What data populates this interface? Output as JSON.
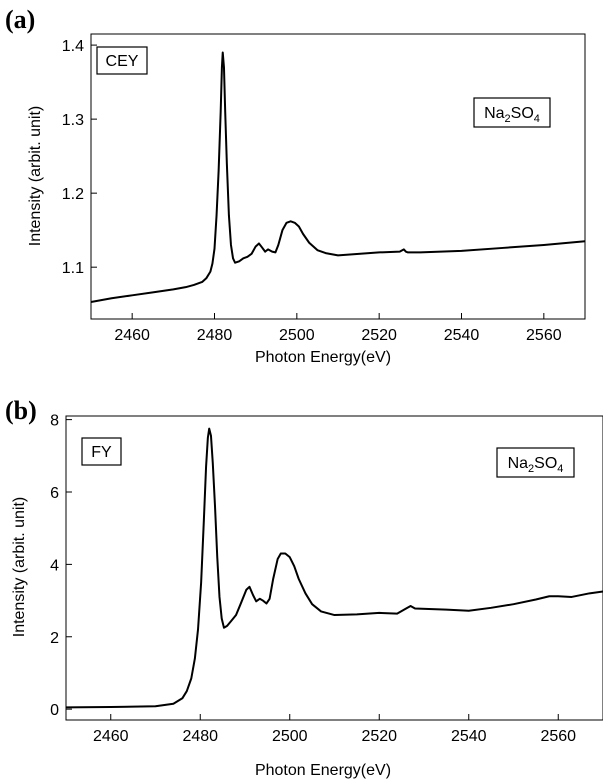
{
  "chart_data": [
    {
      "type": "line",
      "panel_label": "(a)",
      "method_label": "CEY",
      "sample_label": {
        "main": "Na",
        "sub1": "2",
        "mid": "SO",
        "sub2": "4"
      },
      "xlabel": "Photon Energy(eV)",
      "ylabel": "Intensity (arbit. unit)",
      "xlim": [
        2450,
        2570
      ],
      "ylim": [
        1.03,
        1.415
      ],
      "xticks": [
        2460,
        2480,
        2500,
        2520,
        2540,
        2560
      ],
      "yticks": [
        1.1,
        1.2,
        1.3,
        1.4
      ],
      "series": [
        {
          "x": [
            2450,
            2455,
            2460,
            2465,
            2470,
            2473,
            2475,
            2477,
            2478,
            2479,
            2479.5,
            2480,
            2480.5,
            2481,
            2481.5,
            2481.8,
            2482,
            2482.3,
            2482.6,
            2483,
            2483.5,
            2484,
            2484.5,
            2485,
            2486,
            2487,
            2488,
            2489,
            2490,
            2490.8,
            2491.5,
            2492.3,
            2493,
            2494,
            2494.8,
            2495.5,
            2496.5,
            2497.5,
            2498.5,
            2499.5,
            2500.5,
            2501.5,
            2503,
            2505,
            2507,
            2510,
            2515,
            2520,
            2525,
            2526,
            2526.5,
            2527,
            2530,
            2540,
            2550,
            2560,
            2570
          ],
          "y": [
            1.053,
            1.058,
            1.062,
            1.066,
            1.07,
            1.073,
            1.076,
            1.08,
            1.085,
            1.094,
            1.105,
            1.125,
            1.17,
            1.23,
            1.31,
            1.37,
            1.39,
            1.37,
            1.31,
            1.24,
            1.17,
            1.13,
            1.112,
            1.106,
            1.108,
            1.112,
            1.114,
            1.118,
            1.128,
            1.132,
            1.127,
            1.121,
            1.124,
            1.121,
            1.12,
            1.13,
            1.15,
            1.16,
            1.162,
            1.16,
            1.155,
            1.145,
            1.133,
            1.123,
            1.119,
            1.116,
            1.118,
            1.12,
            1.121,
            1.124,
            1.121,
            1.12,
            1.12,
            1.122,
            1.126,
            1.13,
            1.135
          ]
        }
      ]
    },
    {
      "type": "line",
      "panel_label": "(b)",
      "method_label": "FY",
      "sample_label": {
        "main": "Na",
        "sub1": "2",
        "mid": "SO",
        "sub2": "4"
      },
      "xlabel": "Photon Energy(eV)",
      "ylabel": "Intensity (arbit. unit)",
      "xlim": [
        2450,
        2570
      ],
      "ylim": [
        -0.3,
        8.1
      ],
      "xticks": [
        2460,
        2480,
        2500,
        2520,
        2540,
        2560
      ],
      "yticks": [
        0,
        2,
        4,
        6,
        8
      ],
      "series": [
        {
          "x": [
            2450,
            2460,
            2470,
            2474,
            2476,
            2477,
            2478,
            2478.8,
            2479.5,
            2480.2,
            2480.8,
            2481.3,
            2481.7,
            2482,
            2482.4,
            2482.8,
            2483.3,
            2483.8,
            2484.3,
            2484.8,
            2485.3,
            2486,
            2487,
            2488,
            2489,
            2490.3,
            2491,
            2491.8,
            2492.5,
            2493.3,
            2494,
            2494.8,
            2495.5,
            2496.3,
            2497.3,
            2498,
            2499,
            2500,
            2501,
            2502,
            2503.5,
            2505,
            2507,
            2510,
            2515,
            2520,
            2524,
            2526,
            2527,
            2528,
            2535,
            2540,
            2545,
            2550,
            2555,
            2558,
            2560,
            2563,
            2567,
            2570
          ],
          "y": [
            0.05,
            0.06,
            0.08,
            0.15,
            0.3,
            0.5,
            0.85,
            1.4,
            2.2,
            3.5,
            5.2,
            6.7,
            7.5,
            7.75,
            7.55,
            6.8,
            5.6,
            4.2,
            3.1,
            2.5,
            2.25,
            2.3,
            2.45,
            2.6,
            2.9,
            3.3,
            3.38,
            3.15,
            2.98,
            3.05,
            3.0,
            2.92,
            3.05,
            3.6,
            4.15,
            4.3,
            4.3,
            4.2,
            3.95,
            3.6,
            3.2,
            2.9,
            2.7,
            2.6,
            2.62,
            2.66,
            2.64,
            2.78,
            2.85,
            2.78,
            2.75,
            2.72,
            2.8,
            2.9,
            3.03,
            3.12,
            3.12,
            3.1,
            3.2,
            3.25
          ]
        }
      ]
    }
  ]
}
